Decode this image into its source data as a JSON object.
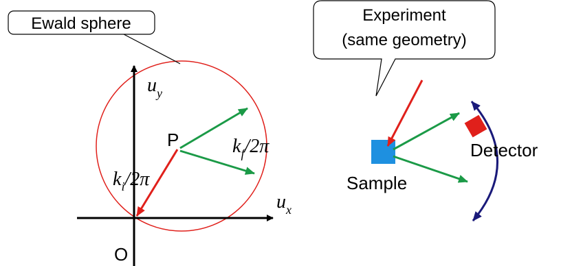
{
  "ewald": {
    "callout": "Ewald sphere",
    "uy": {
      "base": "u",
      "sub": "y"
    },
    "ux": {
      "base": "u",
      "sub": "x"
    },
    "point_p": "P",
    "origin": "O",
    "ki": {
      "base": "k",
      "sub": "i",
      "rest": "/2π"
    },
    "kf": {
      "base": "k",
      "sub": "f",
      "rest": "/2π"
    }
  },
  "experiment": {
    "callout": [
      "Experiment",
      "(same geometry)"
    ],
    "detector": "Detector",
    "sample": "Sample"
  }
}
